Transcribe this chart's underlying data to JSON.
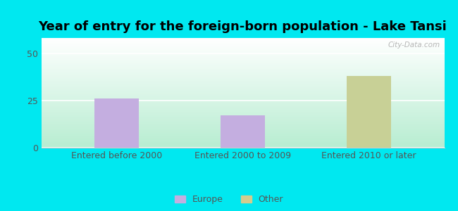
{
  "title": "Year of entry for the foreign-born population - Lake Tansi",
  "categories": [
    "Entered before 2000",
    "Entered 2000 to 2009",
    "Entered 2010 or later"
  ],
  "values": [
    26,
    17,
    38
  ],
  "bar_colors": [
    "#c4aee0",
    "#c4aee0",
    "#c8d096"
  ],
  "background_color": "#00e8f0",
  "yticks": [
    0,
    25,
    50
  ],
  "ylim": [
    0,
    58
  ],
  "legend_labels": [
    "Europe",
    "Other"
  ],
  "legend_colors": [
    "#c4aee0",
    "#d4cc8e"
  ],
  "watermark": "City-Data.com",
  "title_fontsize": 13,
  "tick_fontsize": 9,
  "bar_width": 0.35
}
